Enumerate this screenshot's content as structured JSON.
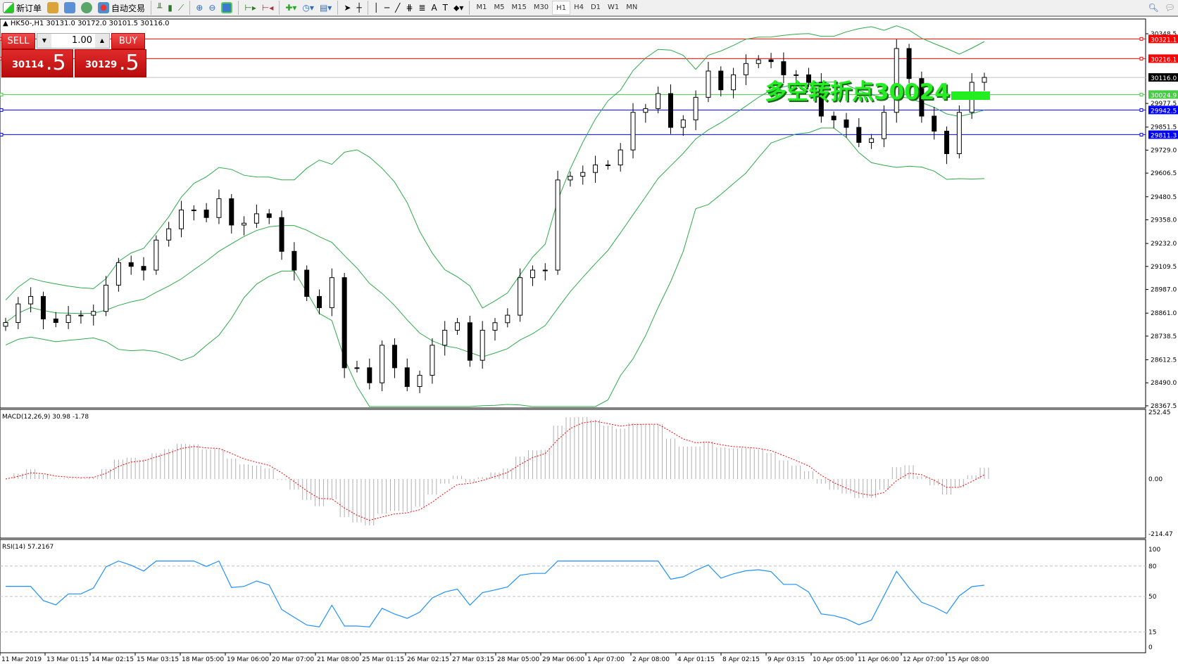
{
  "toolbar": {
    "new_order": "新订单",
    "auto_trading": "自动交易",
    "icons": [
      "new-order-icon",
      "market-watch-icon",
      "navigator-icon",
      "signals-icon",
      "auto-trading-icon",
      "bar-chart-icon",
      "candlestick-icon",
      "line-chart-icon",
      "zoom-in-icon",
      "zoom-out-icon",
      "tile-windows-icon",
      "auto-scroll-icon",
      "chart-shift-icon",
      "indicators-icon",
      "periods-icon",
      "templates-icon",
      "cursor-icon",
      "crosshair-icon",
      "vertical-line-icon",
      "horizontal-line-icon",
      "trendline-icon",
      "equidistant-channel-icon",
      "fibonacci-icon",
      "text-icon",
      "text-label-icon",
      "arrows-icon",
      "search-icon",
      "chat-icon"
    ],
    "timeframes": [
      "M1",
      "M5",
      "M15",
      "M30",
      "H1",
      "H4",
      "D1",
      "W1",
      "MN"
    ],
    "active_timeframe": "H1"
  },
  "chart": {
    "header": "HK50-,H1  30131.0 30172.0 30101.5 30116.0",
    "overlay_text": "多空转折点30024",
    "trade_panel": {
      "sell_label": "SELL",
      "buy_label": "BUY",
      "lots": "1.00",
      "sell_main": "30114",
      "sell_big": ".5",
      "buy_main": "30129",
      "buy_big": ".5"
    },
    "price_ticks": [
      "30348.5",
      "29977.5",
      "29851.5",
      "29729.0",
      "29606.5",
      "29480.5",
      "29358.0",
      "29232.0",
      "29109.5",
      "28987.0",
      "28861.0",
      "28738.5",
      "28612.5",
      "28490.0",
      "28367.5"
    ],
    "hlines": [
      {
        "label": "30321.1",
        "value": 30321.1,
        "color": "#ff0000"
      },
      {
        "label": "30216.1",
        "value": 30216.1,
        "color": "#ff0000"
      },
      {
        "label": "30116.0",
        "value": 30116.0,
        "color": "#c0c0c0",
        "label_bg": "#000000"
      },
      {
        "label": "30024.9",
        "value": 30024.9,
        "color": "#44cc44"
      },
      {
        "label": "29942.5",
        "value": 29942.5,
        "color": "#0000ff"
      },
      {
        "label": "29811.3",
        "value": 29811.3,
        "color": "#0000ff"
      }
    ],
    "time_labels": [
      "11 Mar 2019",
      "13 Mar 01:15",
      "14 Mar 02:15",
      "15 Mar 03:15",
      "18 Mar 05:00",
      "19 Mar 06:00",
      "20 Mar 07:00",
      "21 Mar 08:00",
      "25 Mar 01:15",
      "26 Mar 02:15",
      "27 Mar 03:15",
      "28 Mar 05:00",
      "29 Mar 06:00",
      "1 Apr 07:00",
      "2 Apr 08:00",
      "4 Apr 01:15",
      "8 Apr 02:15",
      "9 Apr 03:15",
      "10 Apr 05:00",
      "11 Apr 06:00",
      "12 Apr 07:00",
      "15 Apr 08:00"
    ],
    "closes": [
      28811,
      28910,
      28950,
      28830,
      28811,
      28850,
      28850,
      28870,
      29010,
      29130,
      29110,
      29090,
      29250,
      29310,
      29410,
      29410,
      29370,
      29470,
      29330,
      29340,
      29390,
      29370,
      29190,
      29090,
      28950,
      28890,
      29050,
      28570,
      28570,
      28490,
      28690,
      28570,
      28470,
      28530,
      28690,
      28770,
      28810,
      28610,
      28770,
      28810,
      28850,
      29050,
      29090,
      29090,
      29570,
      29590,
      29610,
      29650,
      29650,
      29730,
      29930,
      29950,
      30030,
      29850,
      29890,
      30010,
      30150,
      30050,
      30130,
      30190,
      30210,
      30200,
      30130,
      30130,
      30090,
      29910,
      29890,
      29850,
      29770,
      29790,
      29930,
      30270,
      30110,
      29910,
      29830,
      29710,
      29930,
      30090,
      30116
    ],
    "bands_color": "#2eaa4a"
  },
  "macd": {
    "label": "MACD(12,26,9) 30.98 -1.78",
    "ticks": [
      "252.45",
      "0.00",
      "-214.47"
    ],
    "signal_color": "#ff0000"
  },
  "rsi": {
    "label": "RSI(14) 57.2167",
    "ticks": [
      "100",
      "80",
      "50",
      "15",
      "0"
    ],
    "line_color": "#1e90ff"
  }
}
